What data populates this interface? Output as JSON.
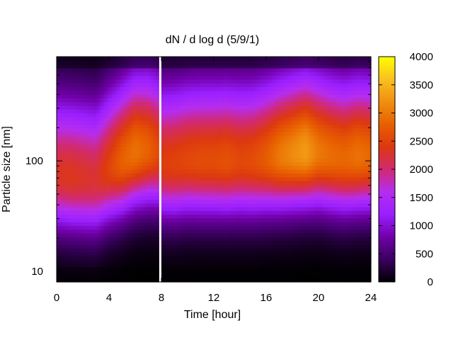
{
  "chart_data": {
    "type": "heatmap",
    "title": "dN / d log d (5/9/1)",
    "xlabel": "Time [hour]",
    "ylabel": "Particle size [nm]",
    "x_ticks": [
      "0",
      "4",
      "8",
      "12",
      "16",
      "20",
      "24"
    ],
    "y_ticks": [
      "10",
      "100"
    ],
    "colorbar_ticks": [
      "0",
      "500",
      "1000",
      "1500",
      "2000",
      "2500",
      "3000",
      "3500",
      "4000"
    ],
    "xlim": [
      0,
      24
    ],
    "ylim_nm": [
      8,
      880
    ],
    "y_scale": "log",
    "zlim": [
      0,
      4000
    ],
    "colormap": [
      "#000000",
      "#3a0060",
      "#7000a8",
      "#9a1fff",
      "#b52df0",
      "#d22a70",
      "#dd3810",
      "#e86000",
      "#f09010",
      "#f9c020",
      "#ffff00"
    ],
    "data_gap_hours": [
      7.7,
      8.0
    ],
    "peak_profile": {
      "times": [
        0,
        1,
        2,
        3,
        4,
        5,
        6,
        7,
        7.7,
        8.1,
        9,
        10,
        11,
        12,
        13,
        14,
        15,
        16,
        17,
        18,
        19,
        20,
        21,
        22,
        23,
        24
      ],
      "peak_diameter_nm": [
        75,
        72,
        70,
        68,
        85,
        100,
        120,
        125,
        120,
        95,
        95,
        100,
        100,
        100,
        100,
        100,
        100,
        105,
        110,
        115,
        120,
        118,
        110,
        105,
        110,
        110
      ],
      "peak_value": [
        2300,
        2350,
        2300,
        2250,
        2500,
        2800,
        2950,
        2800,
        2600,
        2450,
        2500,
        2550,
        2600,
        2600,
        2650,
        2550,
        2600,
        2750,
        3000,
        3150,
        3300,
        3000,
        2900,
        2850,
        2950,
        2850
      ]
    }
  }
}
